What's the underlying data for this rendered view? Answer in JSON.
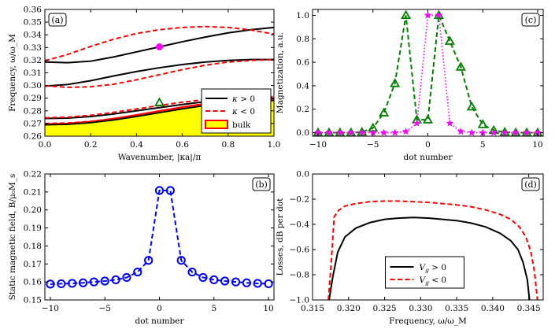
{
  "chart_data": [
    {
      "id": "a",
      "type": "line",
      "panel_label": "(a)",
      "xlabel": "Wavenumber, |κa|/π",
      "ylabel": "Frequency, ω/ω_M",
      "xlim": [
        0.0,
        1.0
      ],
      "ylim": [
        0.26,
        0.36
      ],
      "xticks": [
        0.0,
        0.2,
        0.4,
        0.6,
        0.8,
        1.0
      ],
      "xtick_labels": [
        "0.0",
        "0.2",
        "0.4",
        "0.6",
        "0.8",
        "1.0"
      ],
      "yticks": [
        0.26,
        0.27,
        0.28,
        0.29,
        0.3,
        0.31,
        0.32,
        0.33,
        0.34,
        0.35,
        0.36
      ],
      "ytick_labels": [
        "0.26",
        "0.27",
        "0.28",
        "0.29",
        "0.30",
        "0.31",
        "0.32",
        "0.33",
        "0.34",
        "0.35",
        "0.36"
      ],
      "x": [
        0.0,
        0.1,
        0.2,
        0.3,
        0.4,
        0.5,
        0.6,
        0.7,
        0.8,
        0.9,
        1.0
      ],
      "bulk": {
        "name": "bulk",
        "color": "#ffff00",
        "edge": "#ff0000",
        "lower": [
          0.26,
          0.26,
          0.26,
          0.26,
          0.26,
          0.26,
          0.26,
          0.26,
          0.26,
          0.26,
          0.26
        ],
        "upper": [
          0.2695,
          0.27,
          0.2715,
          0.2738,
          0.2768,
          0.28,
          0.283,
          0.2857,
          0.2876,
          0.2888,
          0.2892
        ]
      },
      "series": [
        {
          "name": "κ > 0",
          "style": "solid",
          "color": "#000000",
          "values": [
            0.3185,
            0.318,
            0.3192,
            0.3225,
            0.3265,
            0.3305,
            0.3345,
            0.3382,
            0.3415,
            0.344,
            0.3458
          ]
        },
        {
          "name": "κ > 0",
          "style": "solid",
          "color": "#000000",
          "values": [
            0.2995,
            0.3008,
            0.3038,
            0.3075,
            0.311,
            0.314,
            0.3165,
            0.3185,
            0.3198,
            0.3205,
            0.3205
          ]
        },
        {
          "name": "κ > 0",
          "style": "solid",
          "color": "#000000",
          "values": [
            0.274,
            0.2743,
            0.2755,
            0.2775,
            0.28,
            0.2825,
            0.285,
            0.2872,
            0.2888,
            0.2897,
            0.29
          ]
        },
        {
          "name": "κ > 0",
          "style": "solid",
          "color": "#000000",
          "values": [
            0.269,
            0.2694,
            0.2707,
            0.2728,
            0.2756,
            0.2786,
            0.2816,
            0.2843,
            0.2864,
            0.2877,
            0.2882
          ]
        },
        {
          "name": "κ < 0",
          "style": "dashed",
          "color": "#ff0000",
          "values": [
            0.3195,
            0.3245,
            0.3308,
            0.3365,
            0.341,
            0.344,
            0.3458,
            0.3465,
            0.3458,
            0.3438,
            0.3405
          ]
        },
        {
          "name": "κ < 0",
          "style": "dashed",
          "color": "#ff0000",
          "values": [
            0.2998,
            0.2985,
            0.299,
            0.301,
            0.3045,
            0.3085,
            0.3125,
            0.316,
            0.3185,
            0.3198,
            0.3205
          ]
        },
        {
          "name": "κ < 0",
          "style": "dashed",
          "color": "#ff0000",
          "values": [
            0.2745,
            0.275,
            0.2765,
            0.2788,
            0.2815,
            0.2842,
            0.2868,
            0.2888,
            0.2902,
            0.291,
            0.2912
          ]
        },
        {
          "name": "κ < 0",
          "style": "dashed",
          "color": "#ff0000",
          "values": [
            0.27,
            0.2704,
            0.2717,
            0.2739,
            0.2767,
            0.2797,
            0.2827,
            0.2853,
            0.2873,
            0.2885,
            0.289
          ]
        }
      ],
      "markers": [
        {
          "x": 0.5,
          "y": 0.3305,
          "shape": "circle",
          "color": "#ff00ff"
        },
        {
          "x": 0.5,
          "y": 0.2865,
          "shape": "triangle",
          "color": "#008000"
        }
      ],
      "legend": {
        "position": "lower-right",
        "entries": [
          "κ > 0",
          "κ < 0",
          "bulk"
        ]
      }
    },
    {
      "id": "b",
      "type": "line",
      "panel_label": "(b)",
      "xlabel": "dot number",
      "ylabel": "Static magnetic field, B/μ₀M_s",
      "xlim": [
        -10.5,
        10.5
      ],
      "ylim": [
        0.15,
        0.22
      ],
      "xticks": [
        -10,
        -5,
        0,
        5,
        10
      ],
      "xtick_labels": [
        "−10",
        "−5",
        "0",
        "5",
        "10"
      ],
      "yticks": [
        0.15,
        0.16,
        0.17,
        0.18,
        0.19,
        0.2,
        0.21,
        0.22
      ],
      "ytick_labels": [
        "0.15",
        "0.16",
        "0.17",
        "0.18",
        "0.19",
        "0.20",
        "0.21",
        "0.22"
      ],
      "x": [
        -10,
        -9,
        -8,
        -7,
        -6,
        -5,
        -4,
        -3,
        -2,
        -1,
        0,
        1,
        2,
        3,
        4,
        5,
        6,
        7,
        8,
        9,
        10
      ],
      "series": [
        {
          "name": "B",
          "style": "dashed",
          "color": "#0000ff",
          "marker": "circle",
          "values": [
            0.1588,
            0.159,
            0.1592,
            0.1595,
            0.16,
            0.1605,
            0.1612,
            0.1625,
            0.1655,
            0.172,
            0.2108,
            0.2108,
            0.172,
            0.1655,
            0.1625,
            0.1612,
            0.1605,
            0.16,
            0.1595,
            0.1592,
            0.159
          ]
        }
      ]
    },
    {
      "id": "c",
      "type": "line",
      "panel_label": "(c)",
      "xlabel": "dot number",
      "ylabel": "Magnetization, a.u.",
      "xlim": [
        -10.5,
        10.5
      ],
      "ylim": [
        -0.03,
        1.05
      ],
      "xticks": [
        -10,
        -5,
        0,
        5,
        10
      ],
      "xtick_labels": [
        "−10",
        "−5",
        "0",
        "5",
        "10"
      ],
      "yticks": [
        0.0,
        0.2,
        0.4,
        0.6,
        0.8,
        1.0
      ],
      "ytick_labels": [
        "0.0",
        "0.2",
        "0.4",
        "0.6",
        "0.8",
        "1.0"
      ],
      "x": [
        -10,
        -9,
        -8,
        -7,
        -6,
        -5,
        -4,
        -3,
        -2,
        -1,
        0,
        1,
        2,
        3,
        4,
        5,
        6,
        7,
        8,
        9,
        10
      ],
      "series": [
        {
          "name": "green",
          "style": "dashed",
          "color": "#008000",
          "marker": "triangle",
          "values": [
            0.0,
            0.0,
            0.0,
            0.0,
            0.005,
            0.04,
            0.17,
            0.42,
            1.0,
            0.11,
            0.11,
            1.0,
            0.78,
            0.56,
            0.22,
            0.07,
            0.02,
            0.005,
            0.0,
            0.0,
            0.0
          ]
        },
        {
          "name": "magenta",
          "style": "dotted",
          "color": "#ff00ff",
          "marker": "star",
          "values": [
            0.0,
            0.0,
            0.0,
            0.0,
            0.0,
            0.0,
            0.0,
            0.0,
            0.01,
            0.08,
            1.0,
            1.0,
            0.08,
            0.01,
            0.0,
            0.0,
            0.0,
            0.0,
            0.0,
            0.0,
            0.0
          ]
        }
      ]
    },
    {
      "id": "d",
      "type": "line",
      "panel_label": "(d)",
      "xlabel": "Frequency, ω/ω_M",
      "ylabel": "Losses, dB per dot",
      "xlim": [
        0.315,
        0.347
      ],
      "ylim": [
        -1.0,
        0.0
      ],
      "xticks": [
        0.315,
        0.32,
        0.325,
        0.33,
        0.335,
        0.34,
        0.345
      ],
      "xtick_labels": [
        "0.315",
        "0.320",
        "0.325",
        "0.330",
        "0.335",
        "0.340",
        "0.345"
      ],
      "yticks": [
        -1.0,
        -0.8,
        -0.6,
        -0.4,
        -0.2,
        0.0
      ],
      "ytick_labels": [
        "−1.0",
        "−0.8",
        "−0.6",
        "−0.4",
        "−0.2",
        "0.0"
      ],
      "series": [
        {
          "name": "V_g > 0",
          "style": "solid",
          "color": "#000000",
          "x": [
            0.3173,
            0.3178,
            0.3185,
            0.3195,
            0.321,
            0.323,
            0.325,
            0.327,
            0.329,
            0.331,
            0.333,
            0.335,
            0.337,
            0.339,
            0.341,
            0.3425,
            0.3435,
            0.3442,
            0.3448,
            0.3451
          ],
          "values": [
            -1.0,
            -0.82,
            -0.62,
            -0.5,
            -0.43,
            -0.385,
            -0.36,
            -0.35,
            -0.345,
            -0.35,
            -0.36,
            -0.37,
            -0.39,
            -0.42,
            -0.47,
            -0.53,
            -0.6,
            -0.7,
            -0.84,
            -1.0
          ]
        },
        {
          "name": "V_g < 0",
          "style": "dashed",
          "color": "#ff0000",
          "x": [
            0.3172,
            0.3176,
            0.318,
            0.3186,
            0.3195,
            0.321,
            0.323,
            0.325,
            0.327,
            0.329,
            0.331,
            0.333,
            0.335,
            0.337,
            0.339,
            0.341,
            0.3425,
            0.3437,
            0.3446,
            0.3453,
            0.3458,
            0.3462
          ],
          "values": [
            -1.0,
            -0.7,
            -0.34,
            -0.29,
            -0.255,
            -0.235,
            -0.22,
            -0.215,
            -0.215,
            -0.22,
            -0.225,
            -0.235,
            -0.245,
            -0.26,
            -0.285,
            -0.32,
            -0.36,
            -0.42,
            -0.5,
            -0.62,
            -0.78,
            -1.0
          ]
        }
      ],
      "legend": {
        "position": "lower-center",
        "entries": [
          "V_g > 0",
          "V_g < 0"
        ]
      }
    }
  ]
}
